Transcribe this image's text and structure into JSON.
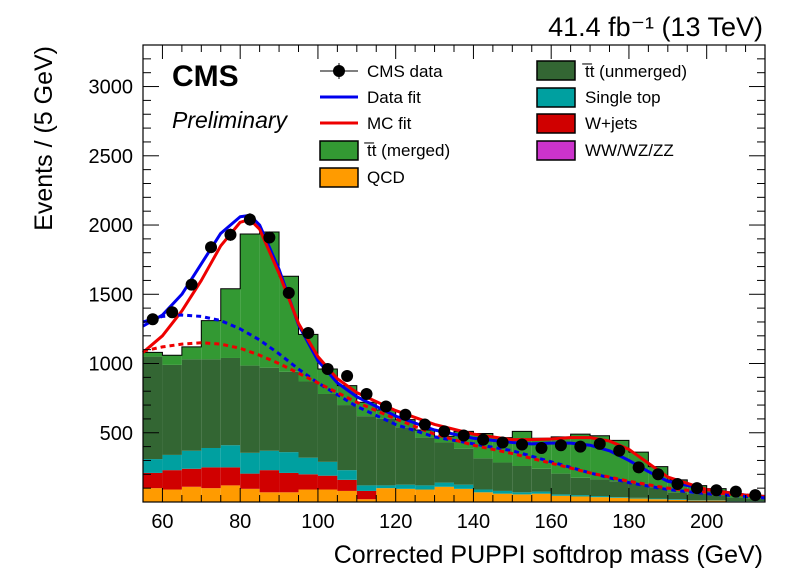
{
  "chart_data": {
    "type": "bar",
    "stacked": true,
    "lumi_label": "41.4 fb⁻¹ (13 TeV)",
    "experiment": "CMS",
    "status": "Preliminary",
    "xlabel": "Corrected PUPPI softdrop mass (GeV)",
    "ylabel": "Events / (5 GeV)",
    "xlim": [
      55,
      215
    ],
    "ylim": [
      0,
      3300
    ],
    "xticks": [
      60,
      80,
      100,
      120,
      140,
      160,
      180,
      200
    ],
    "yticks": [
      500,
      1000,
      1500,
      2000,
      2500,
      3000
    ],
    "bin_edges": [
      55,
      60,
      65,
      70,
      75,
      80,
      85,
      90,
      95,
      100,
      105,
      110,
      115,
      120,
      125,
      130,
      135,
      140,
      145,
      150,
      155,
      160,
      165,
      170,
      175,
      180,
      185,
      190,
      195,
      200,
      205,
      210,
      215
    ],
    "stack": [
      {
        "name": "QCD",
        "color": "#ff9b00",
        "values": [
          100,
          90,
          110,
          100,
          120,
          95,
          70,
          70,
          90,
          90,
          80,
          20,
          100,
          95,
          90,
          110,
          95,
          70,
          60,
          55,
          60,
          45,
          40,
          35,
          30,
          25,
          20,
          15,
          10,
          10,
          5,
          5
        ]
      },
      {
        "name": "W+jets",
        "color": "#d00000",
        "values": [
          110,
          140,
          130,
          150,
          130,
          110,
          160,
          140,
          110,
          100,
          80,
          60,
          0,
          0,
          0,
          0,
          0,
          0,
          0,
          0,
          0,
          0,
          0,
          0,
          0,
          0,
          0,
          0,
          0,
          0,
          0,
          0
        ]
      },
      {
        "name": "WW/WZ/ZZ",
        "color": "#cc33cc",
        "values": [
          0,
          0,
          0,
          0,
          0,
          0,
          0,
          0,
          0,
          0,
          0,
          0,
          0,
          0,
          0,
          0,
          0,
          0,
          0,
          0,
          0,
          0,
          0,
          0,
          0,
          0,
          0,
          0,
          0,
          0,
          0,
          0
        ]
      },
      {
        "name": "Single top",
        "color": "#00a0a0",
        "values": [
          100,
          110,
          130,
          140,
          160,
          150,
          140,
          150,
          120,
          100,
          70,
          40,
          20,
          30,
          30,
          30,
          30,
          20,
          20,
          15,
          15,
          10,
          10,
          8,
          5,
          5,
          5,
          5,
          3,
          2,
          2,
          2
        ]
      },
      {
        "name": "t̅t (unmerged)",
        "color": "#336633",
        "values": [
          740,
          650,
          660,
          640,
          630,
          630,
          600,
          580,
          550,
          490,
          470,
          500,
          480,
          415,
          345,
          290,
          260,
          225,
          205,
          190,
          165,
          150,
          125,
          120,
          115,
          105,
          80,
          50,
          45,
          35,
          25,
          20
        ]
      },
      {
        "name": "t̅t (merged)",
        "color": "#339933",
        "values": [
          30,
          70,
          90,
          280,
          500,
          950,
          980,
          690,
          340,
          180,
          140,
          100,
          65,
          55,
          55,
          45,
          125,
          180,
          180,
          250,
          220,
          265,
          315,
          315,
          295,
          225,
          150,
          90,
          60,
          50,
          25,
          15
        ]
      }
    ],
    "data_series": {
      "name": "CMS data",
      "x": [
        57.5,
        62.5,
        67.5,
        72.5,
        77.5,
        82.5,
        87.5,
        92.5,
        97.5,
        102.5,
        107.5,
        112.5,
        117.5,
        122.5,
        127.5,
        132.5,
        137.5,
        142.5,
        147.5,
        152.5,
        157.5,
        162.5,
        167.5,
        172.5,
        177.5,
        182.5,
        187.5,
        192.5,
        197.5,
        202.5,
        207.5,
        212.5
      ],
      "y": [
        1320,
        1370,
        1570,
        1840,
        1930,
        2040,
        1910,
        1510,
        1220,
        960,
        910,
        780,
        690,
        630,
        560,
        510,
        480,
        450,
        430,
        415,
        390,
        410,
        400,
        420,
        370,
        250,
        200,
        130,
        100,
        85,
        75,
        50
      ]
    },
    "fits": [
      {
        "name": "Data fit",
        "color": "#0000ee",
        "x": [
          55,
          60,
          65,
          70,
          75,
          80,
          82.5,
          85,
          90,
          95,
          100,
          105,
          110,
          120,
          130,
          140,
          150,
          155,
          160,
          165,
          170,
          175,
          180,
          185,
          190,
          200,
          210,
          215
        ],
        "y": [
          1270,
          1350,
          1500,
          1720,
          1940,
          2060,
          2070,
          2000,
          1680,
          1280,
          1020,
          860,
          760,
          620,
          520,
          460,
          430,
          420,
          425,
          425,
          410,
          370,
          300,
          220,
          150,
          90,
          50,
          40
        ]
      },
      {
        "name": "MC fit",
        "color": "#ee0000",
        "x": [
          55,
          60,
          65,
          70,
          75,
          80,
          82.5,
          85,
          90,
          95,
          100,
          105,
          110,
          120,
          130,
          140,
          150,
          155,
          160,
          165,
          170,
          175,
          180,
          185,
          190,
          200,
          210,
          215
        ],
        "y": [
          1080,
          1200,
          1380,
          1600,
          1850,
          2020,
          2040,
          1970,
          1650,
          1290,
          1050,
          890,
          790,
          660,
          560,
          490,
          450,
          450,
          455,
          465,
          465,
          440,
          380,
          280,
          180,
          90,
          50,
          40
        ]
      },
      {
        "name": "Data fit background",
        "color": "#0000ee",
        "dashed": true,
        "x": [
          55,
          60,
          65,
          70,
          75,
          80,
          85,
          90,
          95,
          100,
          110,
          120,
          130,
          140,
          150,
          160,
          170,
          180,
          190,
          200,
          210,
          215
        ],
        "y": [
          1300,
          1340,
          1350,
          1340,
          1310,
          1250,
          1170,
          1070,
          960,
          860,
          690,
          560,
          470,
          420,
          370,
          290,
          210,
          140,
          90,
          60,
          40,
          30
        ]
      },
      {
        "name": "MC fit background",
        "color": "#ee0000",
        "dashed": true,
        "x": [
          55,
          60,
          65,
          70,
          75,
          80,
          85,
          90,
          95,
          100,
          110,
          120,
          130,
          140,
          150,
          160,
          170,
          180,
          190,
          200,
          210,
          215
        ],
        "y": [
          1090,
          1120,
          1140,
          1150,
          1140,
          1110,
          1060,
          1000,
          930,
          860,
          720,
          600,
          490,
          410,
          350,
          280,
          210,
          150,
          100,
          70,
          50,
          40
        ]
      }
    ],
    "legend": {
      "placement": "top",
      "col1": [
        "CMS data",
        "Data fit",
        "MC fit",
        "t̅t (merged)",
        "QCD"
      ],
      "col2": [
        "t̅t (unmerged)",
        "Single top",
        "W+jets",
        "WW/WZ/ZZ"
      ]
    }
  }
}
